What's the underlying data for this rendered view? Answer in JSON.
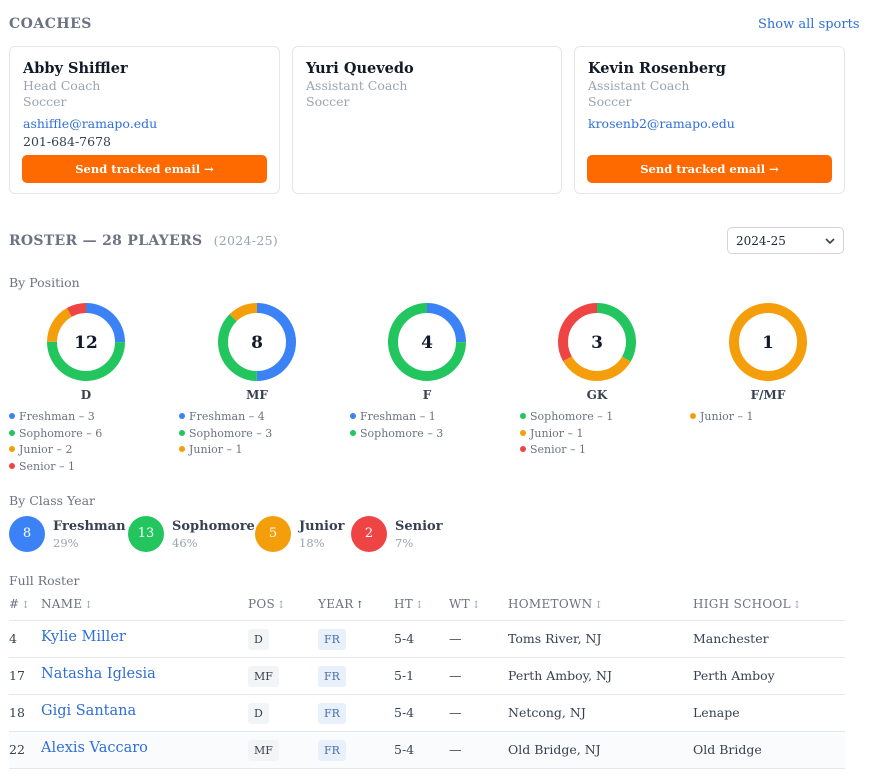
{
  "coaches": {
    "heading": "COACHES",
    "show_all": "Show all sports",
    "cards": [
      {
        "name": "Abby Shiffler",
        "role": "Head Coach",
        "sport": "Soccer",
        "email": "ashiffle@ramapo.edu",
        "phone": "201-684-7678",
        "button": "Send tracked email →"
      },
      {
        "name": "Yuri Quevedo",
        "role": "Assistant Coach",
        "sport": "Soccer"
      },
      {
        "name": "Kevin Rosenberg",
        "role": "Assistant Coach",
        "sport": "Soccer",
        "email": "krosenb2@ramapo.edu",
        "button": "Send tracked email →"
      }
    ]
  },
  "roster": {
    "title": "ROSTER — 28 PLAYERS",
    "season": "(2024-25)",
    "season_select": "2024-25",
    "by_position_label": "By Position",
    "by_class_label": "By Class Year",
    "full_roster_label": "Full Roster"
  },
  "colors": {
    "freshman": "#3b82f6",
    "sophomore": "#22c55e",
    "junior": "#f59e0b",
    "senior": "#ef4444"
  },
  "positions": [
    {
      "pos": "D",
      "total": "12",
      "segments": [
        {
          "year": "freshman",
          "label": "Freshman – 3",
          "count": 3
        },
        {
          "year": "sophomore",
          "label": "Sophomore – 6",
          "count": 6
        },
        {
          "year": "junior",
          "label": "Junior – 2",
          "count": 2
        },
        {
          "year": "senior",
          "label": "Senior – 1",
          "count": 1
        }
      ]
    },
    {
      "pos": "MF",
      "total": "8",
      "segments": [
        {
          "year": "freshman",
          "label": "Freshman – 4",
          "count": 4
        },
        {
          "year": "sophomore",
          "label": "Sophomore – 3",
          "count": 3
        },
        {
          "year": "junior",
          "label": "Junior – 1",
          "count": 1
        }
      ]
    },
    {
      "pos": "F",
      "total": "4",
      "segments": [
        {
          "year": "freshman",
          "label": "Freshman – 1",
          "count": 1
        },
        {
          "year": "sophomore",
          "label": "Sophomore – 3",
          "count": 3
        }
      ]
    },
    {
      "pos": "GK",
      "total": "3",
      "segments": [
        {
          "year": "sophomore",
          "label": "Sophomore – 1",
          "count": 1
        },
        {
          "year": "junior",
          "label": "Junior – 1",
          "count": 1
        },
        {
          "year": "senior",
          "label": "Senior – 1",
          "count": 1
        }
      ]
    },
    {
      "pos": "F/MF",
      "total": "1",
      "segments": [
        {
          "year": "junior",
          "label": "Junior – 1",
          "count": 1
        }
      ]
    }
  ],
  "class_years": [
    {
      "year": "freshman",
      "count": "8",
      "name": "Freshman",
      "pct": "29%"
    },
    {
      "year": "sophomore",
      "count": "13",
      "name": "Sophomore",
      "pct": "46%"
    },
    {
      "year": "junior",
      "count": "5",
      "name": "Junior",
      "pct": "18%"
    },
    {
      "year": "senior",
      "count": "2",
      "name": "Senior",
      "pct": "7%"
    }
  ],
  "table": {
    "columns": [
      {
        "label": "#",
        "arrow": "↕"
      },
      {
        "label": "NAME",
        "arrow": "↕"
      },
      {
        "label": "POS",
        "arrow": "↕"
      },
      {
        "label": "YEAR",
        "arrow": "↑"
      },
      {
        "label": "HT",
        "arrow": "↕"
      },
      {
        "label": "WT",
        "arrow": "↕"
      },
      {
        "label": "HOMETOWN",
        "arrow": "↕"
      },
      {
        "label": "HIGH SCHOOL",
        "arrow": "↕"
      }
    ],
    "rows": [
      {
        "num": "4",
        "name": "Kylie Miller",
        "pos": "D",
        "year": "FR",
        "ht": "5-4",
        "wt": "—",
        "hometown": "Toms River, NJ",
        "school": "Manchester"
      },
      {
        "num": "17",
        "name": "Natasha Iglesia",
        "pos": "MF",
        "year": "FR",
        "ht": "5-1",
        "wt": "—",
        "hometown": "Perth Amboy, NJ",
        "school": "Perth Amboy"
      },
      {
        "num": "18",
        "name": "Gigi Santana",
        "pos": "D",
        "year": "FR",
        "ht": "5-4",
        "wt": "—",
        "hometown": "Netcong, NJ",
        "school": "Lenape"
      },
      {
        "num": "22",
        "name": "Alexis Vaccaro",
        "pos": "MF",
        "year": "FR",
        "ht": "5-4",
        "wt": "—",
        "hometown": "Old Bridge, NJ",
        "school": "Old Bridge"
      }
    ]
  }
}
